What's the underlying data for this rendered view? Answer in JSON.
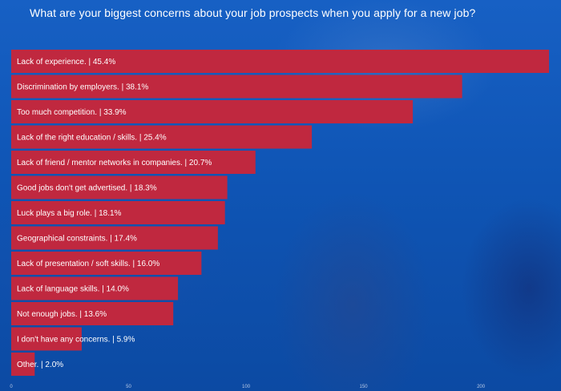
{
  "title": "What are your biggest concerns about your job prospects when you apply for a new job?",
  "colors": {
    "bar": "#c0283f",
    "background": "#0f56b8",
    "text": "#ffffff"
  },
  "chart_data": {
    "type": "bar",
    "orientation": "horizontal",
    "title": "What are your biggest concerns about your job prospects when you apply for a new job?",
    "xlabel": "",
    "ylabel": "",
    "xlim": [
      0,
      230
    ],
    "xticks": [
      0,
      50,
      100,
      150,
      200
    ],
    "grid": false,
    "categories": [
      "Lack of experience. | 45.4%",
      "Discrimination by employers. | 38.1%",
      "Too much competition. | 33.9%",
      "Lack of the right education / skills. | 25.4%",
      "Lack of friend / mentor networks in companies. | 20.7%",
      "Good jobs don't get advertised. | 18.3%",
      "Luck plays a big role. | 18.1%",
      "Geographical constraints. | 17.4%",
      "Lack of presentation / soft skills. | 16.0%",
      "Lack of language skills. | 14.0%",
      "Not enough jobs. | 13.6%",
      "I don't have any concerns. | 5.9%",
      "Other. | 2.0%"
    ],
    "values": [
      229,
      192,
      171,
      128,
      104,
      92,
      91,
      88,
      81,
      71,
      69,
      30,
      10
    ]
  }
}
